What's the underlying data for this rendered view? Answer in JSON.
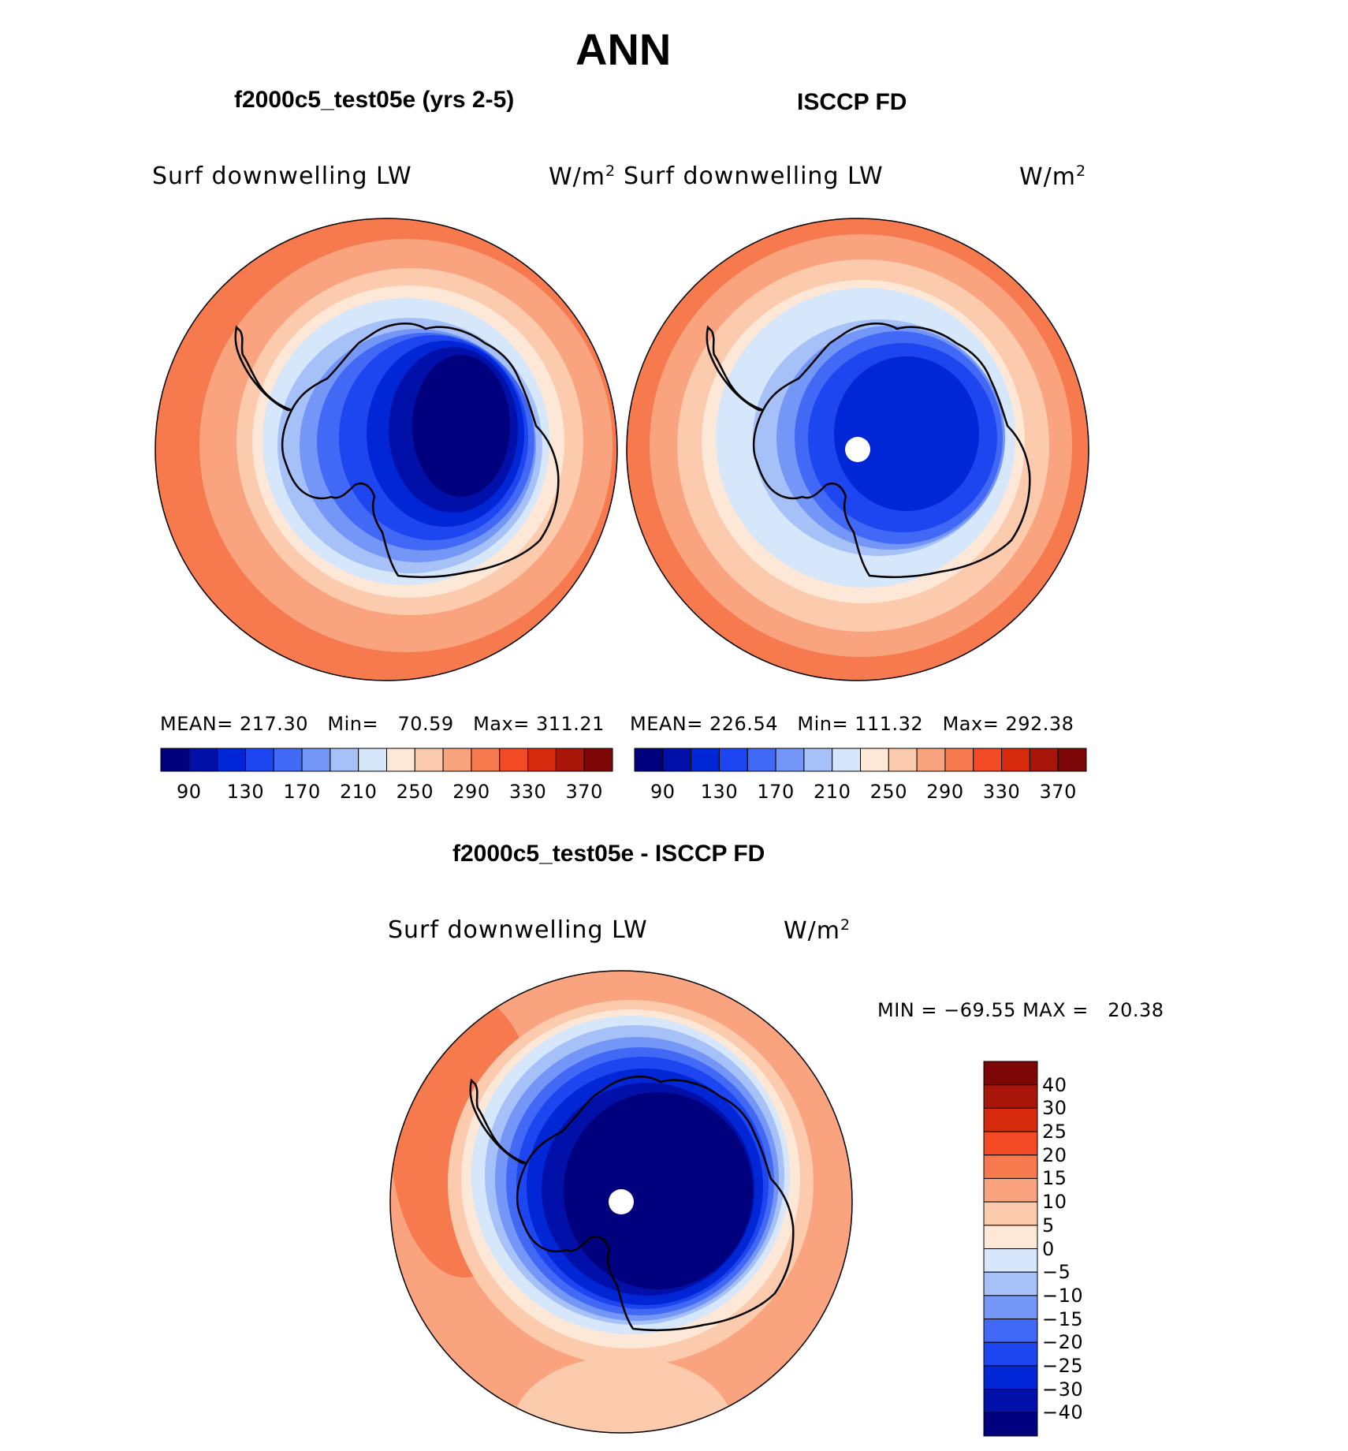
{
  "page_title": "ANN",
  "panels": {
    "model": {
      "title": "f2000c5_test05e (yrs 2-5)",
      "variable": "Surf downwelling LW",
      "units": "W/m",
      "units_sup": "2",
      "stats": {
        "mean_label": "MEAN=",
        "mean": "217.30",
        "min_label": "Min=",
        "min": "70.59",
        "max_label": "Max=",
        "max": "311.21"
      }
    },
    "obs": {
      "title": "ISCCP FD",
      "variable": "Surf downwelling LW",
      "units": "W/m",
      "units_sup": "2",
      "stats": {
        "mean_label": "MEAN=",
        "mean": "226.54",
        "min_label": "Min=",
        "min": "111.32",
        "max_label": "Max=",
        "max": "292.38"
      }
    },
    "diff": {
      "title": "f2000c5_test05e - ISCCP FD",
      "variable": "Surf downwelling LW",
      "units": "W/m",
      "units_sup": "2",
      "range": {
        "min_label": "MIN =",
        "min": "−69.55",
        "max_label": "MAX =",
        "max": "20.38"
      }
    }
  },
  "colorbar_horizontal": {
    "colors": [
      "#00007f",
      "#0010a8",
      "#0026d6",
      "#1e46f0",
      "#4269f5",
      "#7396f7",
      "#a6c1f8",
      "#d6e6fb",
      "#fde7d7",
      "#fccaac",
      "#f9a47f",
      "#f67a4e",
      "#f24a24",
      "#d62a0c",
      "#a8160a",
      "#7d0606"
    ],
    "labels": [
      "90",
      "130",
      "170",
      "210",
      "250",
      "290",
      "330",
      "370"
    ]
  },
  "colorbar_vertical": {
    "colors_top_to_bottom": [
      "#7d0606",
      "#a8160a",
      "#d62a0c",
      "#f24a24",
      "#f67a4e",
      "#f9a47f",
      "#fccaac",
      "#fde7d7",
      "#d6e6fb",
      "#a6c1f8",
      "#7396f7",
      "#4269f5",
      "#1e46f0",
      "#0026d6",
      "#0010a8",
      "#00007f"
    ],
    "labels": [
      "40",
      "30",
      "25",
      "20",
      "15",
      "10",
      "5",
      "0",
      "−5",
      "−10",
      "−15",
      "−20",
      "−25",
      "−30",
      "−40"
    ]
  }
}
